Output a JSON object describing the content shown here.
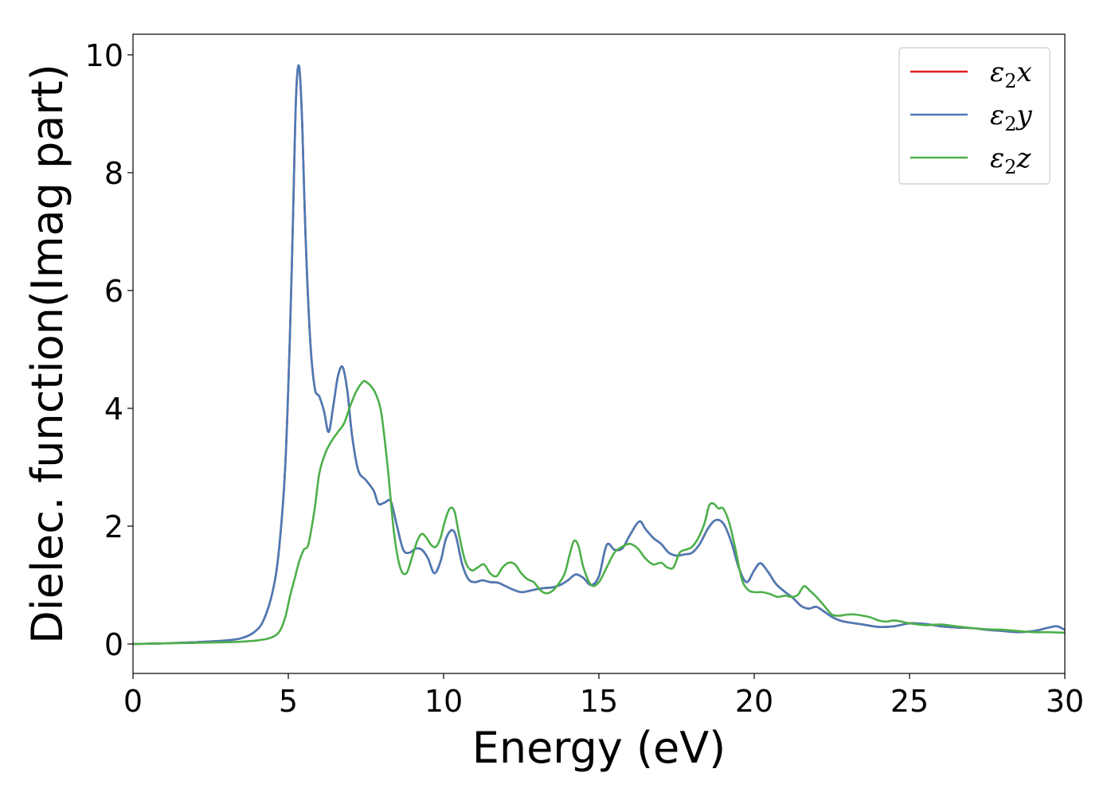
{
  "chart_data": {
    "type": "line",
    "title": "",
    "xlabel": "Energy (eV)",
    "ylabel": "Dielec. function(Imag part)",
    "xlim": [
      0,
      30
    ],
    "ylim": [
      -0.5,
      10.35
    ],
    "x_ticks": [
      0,
      5,
      10,
      15,
      20,
      25,
      30
    ],
    "y_ticks": [
      0,
      2,
      4,
      6,
      8,
      10
    ],
    "grid": false,
    "legend_position": "top-right",
    "series": [
      {
        "name": "ε₂x",
        "legend": {
          "base": "ε",
          "sub": "2",
          "suffix": "x"
        },
        "color": "#e41a1c",
        "same_as": "ε₂y"
      },
      {
        "name": "ε₂y",
        "legend": {
          "base": "ε",
          "sub": "2",
          "suffix": "y"
        },
        "color": "#4a7bb7",
        "x": [
          0,
          1,
          2,
          3,
          3.5,
          3.9,
          4.2,
          4.5,
          4.7,
          4.9,
          5.05,
          5.15,
          5.25,
          5.35,
          5.45,
          5.55,
          5.7,
          5.85,
          6.0,
          6.15,
          6.3,
          6.45,
          6.6,
          6.75,
          6.9,
          7.05,
          7.25,
          7.5,
          7.75,
          7.9,
          8.1,
          8.3,
          8.5,
          8.7,
          8.9,
          9.1,
          9.3,
          9.5,
          9.7,
          9.9,
          10.1,
          10.35,
          10.6,
          10.8,
          11.0,
          11.25,
          11.5,
          11.75,
          12.0,
          12.25,
          12.5,
          12.75,
          13.0,
          13.25,
          13.5,
          13.75,
          14.0,
          14.25,
          14.5,
          14.75,
          15.0,
          15.25,
          15.5,
          15.75,
          16.0,
          16.3,
          16.5,
          16.75,
          17.0,
          17.25,
          17.5,
          17.75,
          18.0,
          18.25,
          18.5,
          18.75,
          19.0,
          19.25,
          19.5,
          19.75,
          20.0,
          20.2,
          20.45,
          20.7,
          21.0,
          21.25,
          21.5,
          21.75,
          22.0,
          22.25,
          22.5,
          22.75,
          23.0,
          23.5,
          24.0,
          24.5,
          25.0,
          25.5,
          26.0,
          26.5,
          27.0,
          27.5,
          28.0,
          28.5,
          29.0,
          29.5,
          29.75,
          30.0
        ],
        "y": [
          0.0,
          0.01,
          0.03,
          0.06,
          0.1,
          0.2,
          0.4,
          0.9,
          1.6,
          3.0,
          5.2,
          7.2,
          9.3,
          9.8,
          8.8,
          7.0,
          5.2,
          4.35,
          4.2,
          3.95,
          3.6,
          4.05,
          4.55,
          4.7,
          4.3,
          3.55,
          2.95,
          2.78,
          2.6,
          2.38,
          2.4,
          2.42,
          2.0,
          1.6,
          1.55,
          1.62,
          1.6,
          1.45,
          1.2,
          1.4,
          1.82,
          1.9,
          1.35,
          1.1,
          1.05,
          1.08,
          1.05,
          1.04,
          0.98,
          0.92,
          0.88,
          0.9,
          0.93,
          0.95,
          0.96,
          1.0,
          1.08,
          1.18,
          1.12,
          1.0,
          1.15,
          1.68,
          1.6,
          1.62,
          1.85,
          2.08,
          1.95,
          1.8,
          1.7,
          1.55,
          1.5,
          1.52,
          1.55,
          1.7,
          1.95,
          2.1,
          2.05,
          1.75,
          1.3,
          1.05,
          1.25,
          1.37,
          1.22,
          1.02,
          0.88,
          0.78,
          0.65,
          0.6,
          0.63,
          0.55,
          0.46,
          0.4,
          0.37,
          0.33,
          0.29,
          0.3,
          0.35,
          0.34,
          0.3,
          0.28,
          0.27,
          0.24,
          0.22,
          0.2,
          0.22,
          0.28,
          0.3,
          0.24
        ]
      },
      {
        "name": "ε₂z",
        "legend": {
          "base": "ε",
          "sub": "2",
          "suffix": "z"
        },
        "color": "#4daf4a",
        "x": [
          0,
          1,
          2,
          3,
          3.5,
          4.0,
          4.4,
          4.7,
          4.9,
          5.05,
          5.2,
          5.35,
          5.5,
          5.65,
          5.85,
          6.0,
          6.2,
          6.4,
          6.6,
          6.8,
          7.0,
          7.2,
          7.4,
          7.5,
          7.7,
          7.85,
          8.0,
          8.2,
          8.4,
          8.6,
          8.8,
          9.0,
          9.15,
          9.3,
          9.45,
          9.6,
          9.75,
          9.9,
          10.05,
          10.2,
          10.35,
          10.5,
          10.7,
          10.9,
          11.1,
          11.3,
          11.5,
          11.7,
          11.9,
          12.1,
          12.3,
          12.5,
          12.7,
          12.9,
          13.1,
          13.3,
          13.5,
          13.7,
          13.9,
          14.05,
          14.2,
          14.35,
          14.5,
          14.75,
          15.0,
          15.25,
          15.5,
          15.75,
          16.0,
          16.25,
          16.5,
          16.75,
          17.0,
          17.2,
          17.4,
          17.6,
          17.8,
          18.0,
          18.2,
          18.4,
          18.55,
          18.7,
          18.85,
          19.0,
          19.2,
          19.4,
          19.6,
          19.8,
          20.0,
          20.25,
          20.5,
          20.75,
          21.0,
          21.2,
          21.4,
          21.6,
          21.8,
          22.0,
          22.25,
          22.5,
          22.75,
          23.0,
          23.25,
          23.5,
          23.75,
          24.0,
          24.25,
          24.5,
          24.75,
          25.0,
          25.5,
          26.0,
          26.5,
          27.0,
          27.5,
          28.0,
          28.5,
          29.0,
          29.5,
          30.0
        ],
        "y": [
          0.0,
          0.01,
          0.02,
          0.03,
          0.04,
          0.06,
          0.1,
          0.2,
          0.45,
          0.8,
          1.1,
          1.4,
          1.6,
          1.7,
          2.3,
          2.9,
          3.25,
          3.45,
          3.6,
          3.75,
          4.05,
          4.3,
          4.45,
          4.45,
          4.35,
          4.2,
          3.9,
          3.0,
          1.9,
          1.3,
          1.2,
          1.5,
          1.75,
          1.87,
          1.8,
          1.68,
          1.65,
          1.8,
          2.1,
          2.3,
          2.25,
          1.85,
          1.4,
          1.25,
          1.3,
          1.35,
          1.2,
          1.15,
          1.3,
          1.38,
          1.35,
          1.2,
          1.1,
          1.05,
          0.92,
          0.86,
          0.9,
          1.02,
          1.2,
          1.5,
          1.75,
          1.65,
          1.3,
          1.0,
          1.05,
          1.3,
          1.55,
          1.65,
          1.7,
          1.62,
          1.45,
          1.35,
          1.38,
          1.3,
          1.3,
          1.55,
          1.6,
          1.65,
          1.8,
          2.05,
          2.35,
          2.38,
          2.3,
          2.3,
          2.05,
          1.6,
          1.1,
          0.92,
          0.88,
          0.88,
          0.85,
          0.8,
          0.82,
          0.8,
          0.83,
          0.98,
          0.9,
          0.8,
          0.65,
          0.5,
          0.48,
          0.5,
          0.5,
          0.48,
          0.45,
          0.4,
          0.38,
          0.4,
          0.38,
          0.35,
          0.32,
          0.33,
          0.3,
          0.27,
          0.25,
          0.24,
          0.22,
          0.2,
          0.2,
          0.19
        ]
      }
    ]
  }
}
